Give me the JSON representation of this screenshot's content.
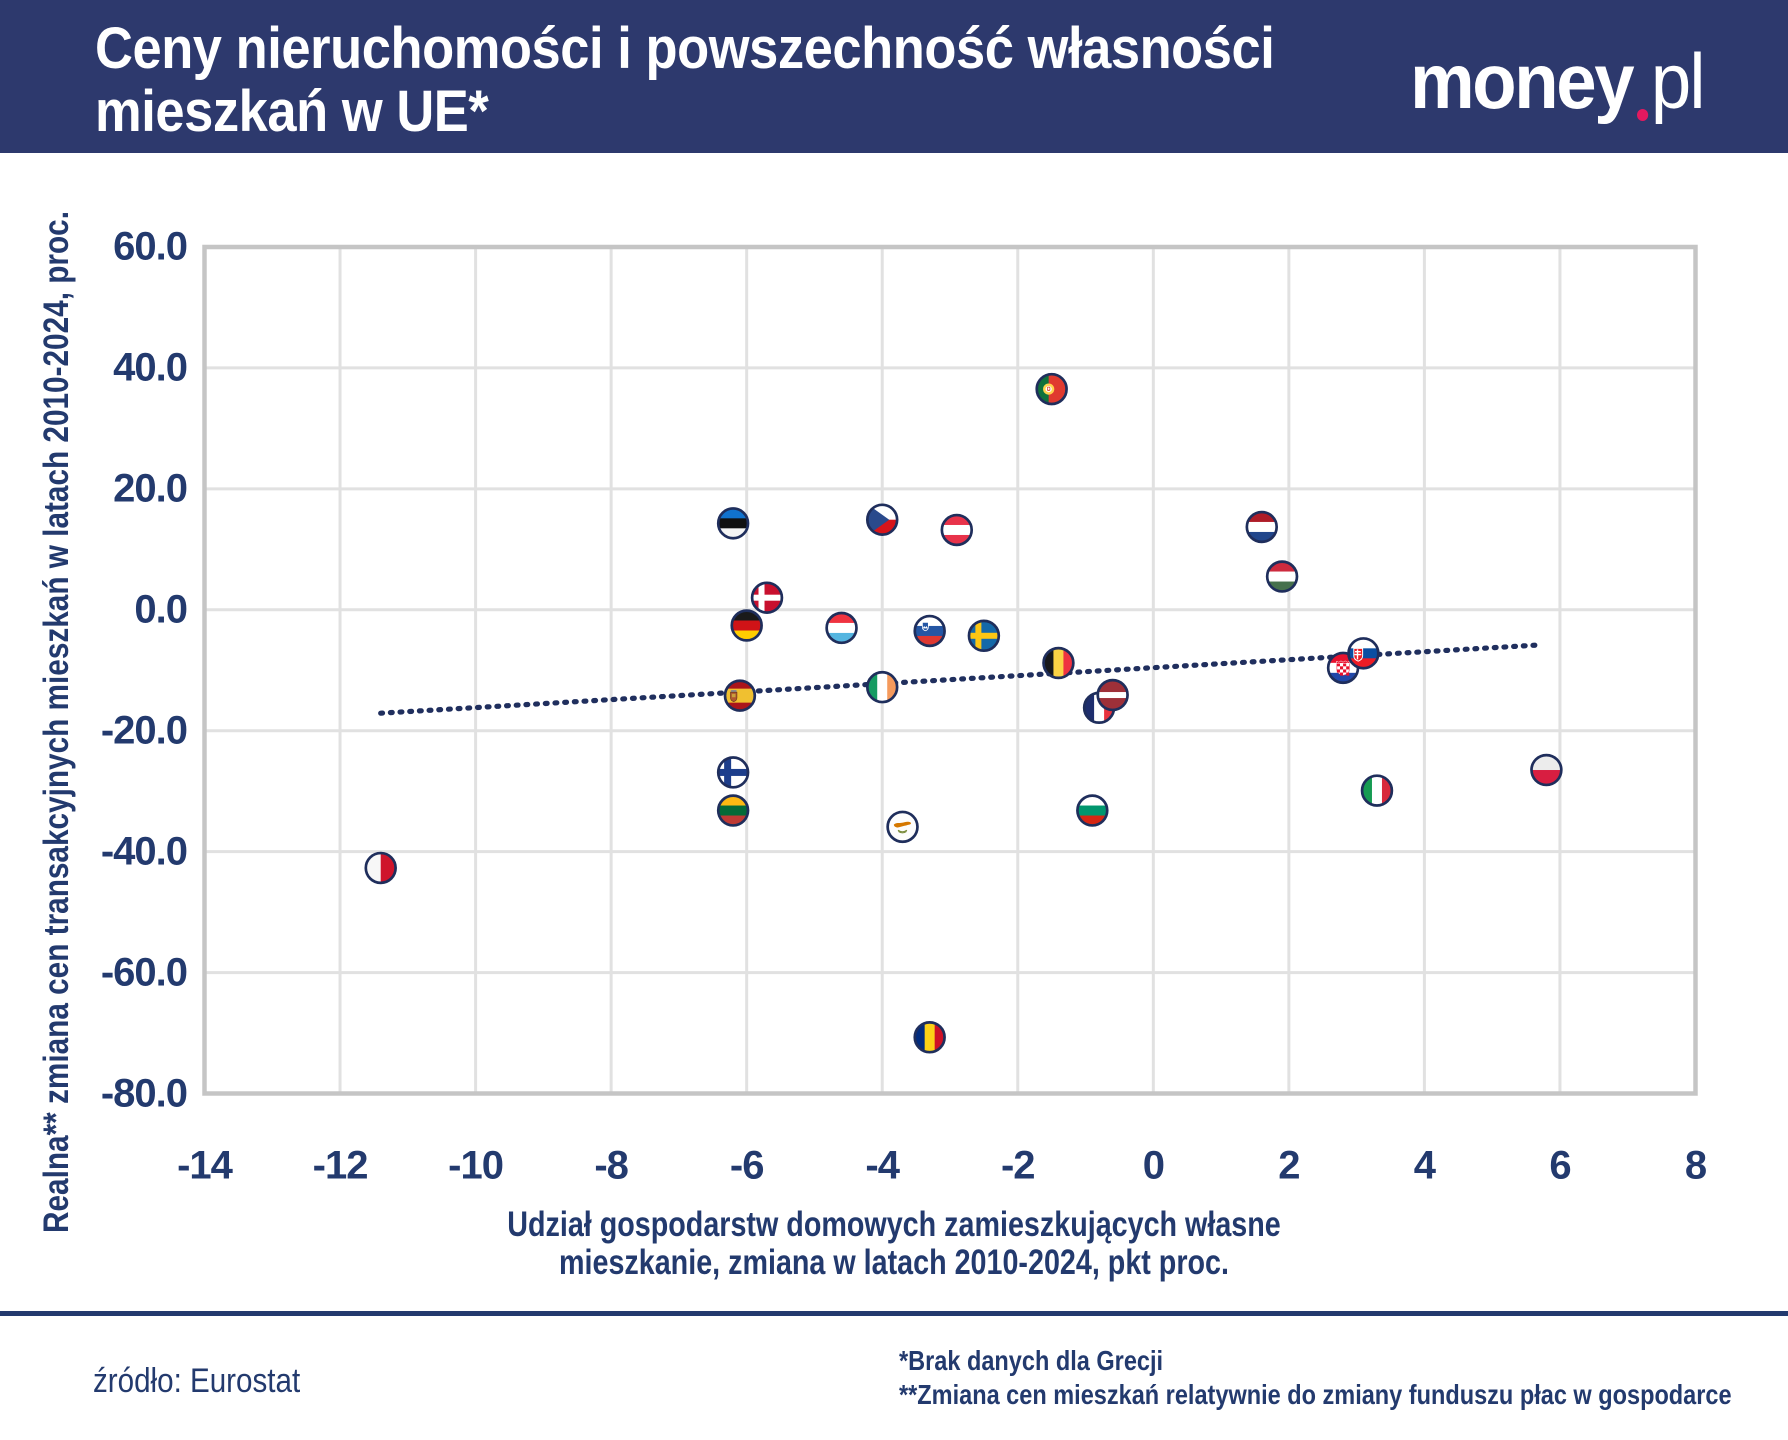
{
  "header": {
    "title_line1": "Ceny nieruchomości i powszechność własności",
    "title_line2": "mieszkań w UE*",
    "logo": {
      "word": "money",
      "suffix": "pl",
      "dot_color": "#E3195F"
    }
  },
  "footer": {
    "source": "źródło: Eurostat",
    "note1": "*Brak danych dla Grecji",
    "note2": "**Zmiana cen mieszkań relatywnie do zmiany funduszu płac w gospodarce"
  },
  "colors": {
    "header_bg": "#2D396D",
    "text_navy": "#233A6E",
    "marker_ring": "#1F2E5C",
    "trend": "#202F5E",
    "grid": "#E1E1E1",
    "plot_border": "#C5C5C5"
  },
  "chart_data": {
    "type": "scatter",
    "title": "Ceny nieruchomości i powszechność własności mieszkań w UE*",
    "xlabel_line1": "Udział gospodarstw domowych zamieszkujących własne",
    "xlabel_line2": "mieszkanie, zmiana w latach 2010-2024, pkt proc.",
    "ylabel": "Realna** zmiana cen transakcyjnych mieszkań w latach 2010-2024, proc.",
    "xlim": [
      -14,
      8
    ],
    "ylim": [
      -80,
      60
    ],
    "x_ticks": [
      -14,
      -12,
      -10,
      -8,
      -6,
      -4,
      -2,
      0,
      2,
      4,
      6,
      8
    ],
    "x_tick_labels": [
      "-14",
      "-12",
      "-10",
      "-8",
      "-6",
      "-4",
      "-2",
      "0",
      "2",
      "4",
      "6",
      "8"
    ],
    "y_ticks": [
      60,
      40,
      20,
      0,
      -20,
      -40,
      -60,
      -80
    ],
    "y_tick_labels": [
      "60.0",
      "40.0",
      "20.0",
      "0.0",
      "-20.0",
      "-40.0",
      "-60.0",
      "-80.0"
    ],
    "grid": true,
    "legend": "none",
    "marker_style": "circular country flags with navy ring",
    "points": [
      {
        "code": "pt",
        "country": "Portugalia",
        "x": -1.5,
        "y": 36.5
      },
      {
        "code": "ee",
        "country": "Estonia",
        "x": -6.2,
        "y": 14.3
      },
      {
        "code": "cz",
        "country": "Czechy",
        "x": -4.0,
        "y": 14.9
      },
      {
        "code": "at",
        "country": "Austria",
        "x": -2.9,
        "y": 13.2
      },
      {
        "code": "nl",
        "country": "Holandia",
        "x": 1.6,
        "y": 13.7
      },
      {
        "code": "hu",
        "country": "Węgry",
        "x": 1.9,
        "y": 5.5
      },
      {
        "code": "de",
        "country": "Niemcy",
        "x": -6.0,
        "y": -2.6
      },
      {
        "code": "dk",
        "country": "Dania",
        "x": -5.7,
        "y": 2.0
      },
      {
        "code": "lu",
        "country": "Luksemburg",
        "x": -4.6,
        "y": -3.0
      },
      {
        "code": "si",
        "country": "Słowenia",
        "x": -3.3,
        "y": -3.5
      },
      {
        "code": "se",
        "country": "Szwecja",
        "x": -2.5,
        "y": -4.3
      },
      {
        "code": "be",
        "country": "Belgia",
        "x": -1.4,
        "y": -8.8
      },
      {
        "code": "hr",
        "country": "Chorwacja",
        "x": 2.8,
        "y": -9.6
      },
      {
        "code": "sk",
        "country": "Słowacja",
        "x": 3.1,
        "y": -7.2
      },
      {
        "code": "es",
        "country": "Hiszpania",
        "x": -6.1,
        "y": -14.2
      },
      {
        "code": "ie",
        "country": "Irlandia",
        "x": -4.0,
        "y": -12.8
      },
      {
        "code": "fr",
        "country": "Francja",
        "x": -0.8,
        "y": -16.2
      },
      {
        "code": "lv",
        "country": "Łotwa",
        "x": -0.6,
        "y": -14.1
      },
      {
        "code": "fi",
        "country": "Finlandia",
        "x": -6.2,
        "y": -26.9
      },
      {
        "code": "lt",
        "country": "Litwa",
        "x": -6.2,
        "y": -33.2
      },
      {
        "code": "cy",
        "country": "Cypr",
        "x": -3.7,
        "y": -35.9
      },
      {
        "code": "bg",
        "country": "Bułgaria",
        "x": -0.9,
        "y": -33.2
      },
      {
        "code": "it",
        "country": "Włochy",
        "x": 3.3,
        "y": -29.9
      },
      {
        "code": "pl",
        "country": "Polska",
        "x": 5.8,
        "y": -26.5
      },
      {
        "code": "mt",
        "country": "Malta",
        "x": -11.4,
        "y": -42.7
      },
      {
        "code": "ro",
        "country": "Rumunia",
        "x": -3.3,
        "y": -70.7
      }
    ],
    "trendline": {
      "style": "dotted",
      "x1": -11.4,
      "y1": -17.1,
      "x2": 5.72,
      "y2": -5.8
    }
  }
}
